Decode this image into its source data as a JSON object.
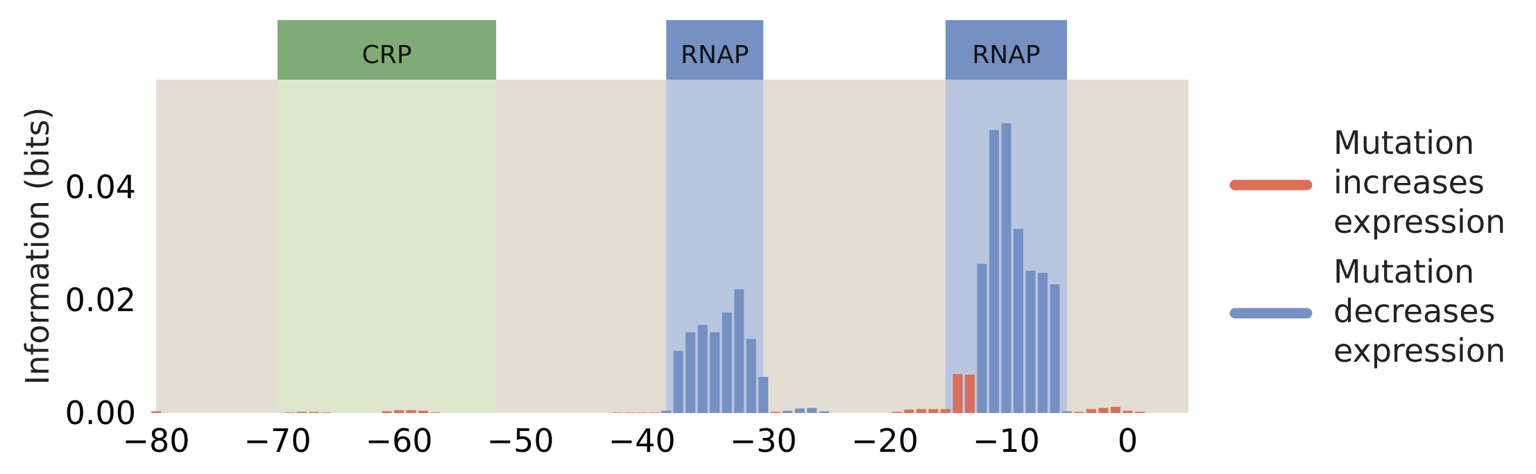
{
  "chart_data": {
    "type": "bar",
    "title": "",
    "xlabel": "",
    "ylabel": "Information (bits)",
    "xlim": [
      -80,
      5
    ],
    "ylim": [
      0,
      0.059
    ],
    "x_ticks": [
      -80,
      -70,
      -60,
      -50,
      -40,
      -30,
      -20,
      -10,
      0
    ],
    "x_tick_labels": [
      "−80",
      "−70",
      "−60",
      "−50",
      "−40",
      "−30",
      "−20",
      "−10",
      "0"
    ],
    "y_ticks": [
      0,
      0.02,
      0.04
    ],
    "y_tick_labels": [
      "0.00",
      "0.02",
      "0.04"
    ],
    "grid": false,
    "legend_position": "right",
    "regions": [
      {
        "label": "CRP",
        "start": -70,
        "end": -52,
        "color": "#7eac74",
        "fill": "#dde6cc"
      },
      {
        "label": "RNAP",
        "start": -38,
        "end": -30,
        "color": "#7591c3",
        "fill": "#b9c6df"
      },
      {
        "label": "RNAP",
        "start": -15,
        "end": -5,
        "color": "#7591c3",
        "fill": "#b9c6df"
      }
    ],
    "series": [
      {
        "name": "Mutation increases expression",
        "color": "#dc6e57",
        "x": [
          -80,
          -69,
          -68,
          -67,
          -66,
          -61,
          -60,
          -59,
          -58,
          -57,
          -42,
          -41,
          -40,
          -39,
          -30,
          -29,
          -19,
          -18,
          -17,
          -16,
          -15,
          -14,
          -13,
          -9,
          -4,
          -3,
          -2,
          -1,
          0,
          1
        ],
        "values": [
          0.0003,
          0.0001,
          0.0002,
          0.0002,
          0.0001,
          0.0003,
          0.0005,
          0.0005,
          0.0004,
          0.0001,
          0.0001,
          0.0001,
          0.0001,
          0.0001,
          0.0007,
          0.0002,
          0.0002,
          0.0006,
          0.0007,
          0.0007,
          0.0007,
          0.0069,
          0.0068,
          0.0042,
          0.0002,
          0.0007,
          0.0009,
          0.0011,
          0.0004,
          0.0002
        ]
      },
      {
        "name": "Mutation decreases expression",
        "color": "#7591c3",
        "x": [
          -38,
          -37,
          -36,
          -35,
          -34,
          -33,
          -32,
          -31,
          -30,
          -28,
          -27,
          -26,
          -25,
          -12,
          -11,
          -10,
          -9,
          -8,
          -7,
          -6,
          -5
        ],
        "values": [
          0.0004,
          0.011,
          0.0143,
          0.0156,
          0.0143,
          0.0178,
          0.0219,
          0.0131,
          0.0064,
          0.0004,
          0.0008,
          0.0009,
          0.0003,
          0.0264,
          0.0501,
          0.0513,
          0.0326,
          0.0252,
          0.0248,
          0.0228,
          0.0003
        ]
      }
    ]
  },
  "legend": {
    "increase_lines": [
      "Mutation",
      "increases",
      "expression"
    ],
    "decrease_lines": [
      "Mutation",
      "decreases",
      "expression"
    ]
  }
}
